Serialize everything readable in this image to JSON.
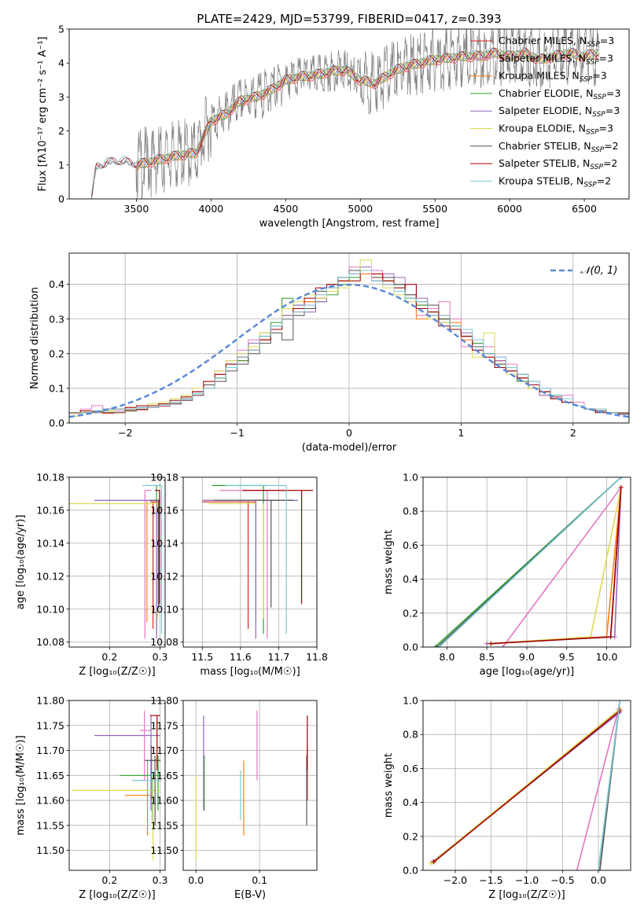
{
  "figure": {
    "title": "PLATE=2429, MJD=53799, FIBERID=0417, z=0.393"
  },
  "models": [
    {
      "name": "Chabrier MILES",
      "nssp": "3",
      "color": "#d62728"
    },
    {
      "name": "Salpeter MILES",
      "nssp": "3",
      "color": "#e377c2"
    },
    {
      "name": "Kroupa MILES",
      "nssp": "3",
      "color": "#ff7f0e"
    },
    {
      "name": "Chabrier ELODIE",
      "nssp": "3",
      "color": "#2ca02c"
    },
    {
      "name": "Salpeter ELODIE",
      "nssp": "3",
      "color": "#9467bd"
    },
    {
      "name": "Kroupa ELODIE",
      "nssp": "3",
      "color": "#dbdb52"
    },
    {
      "name": "Chabrier STELIB",
      "nssp": "2",
      "color": "#555555"
    },
    {
      "name": "Salpeter STELIB",
      "nssp": "2",
      "color": "#a00000"
    },
    {
      "name": "Kroupa STELIB",
      "nssp": "2",
      "color": "#7ec8d8"
    }
  ],
  "chart_data": [
    {
      "id": "spectrum",
      "type": "line",
      "title": "PLATE=2429, MJD=53799, FIBERID=0417, z=0.393",
      "xlabel": "wavelength [Angstrom, rest frame]",
      "ylabel": "Flux [fλ10⁻¹⁷ erg cm⁻² s⁻¹ A⁻¹]",
      "xlim": [
        3050,
        6800
      ],
      "ylim": [
        0,
        5
      ],
      "xticks": [
        3500,
        4000,
        4500,
        5000,
        5500,
        6000,
        6500
      ],
      "yticks": [
        0,
        1,
        2,
        3,
        4,
        5
      ],
      "data_color": "#808080",
      "data_approx": {
        "x": [
          3200,
          3230,
          3300,
          3400,
          3500,
          3600,
          3700,
          3800,
          3900,
          4000,
          4100,
          4200,
          4300,
          4400,
          4500,
          4600,
          4700,
          4800,
          4900,
          5000,
          5100,
          5200,
          5300,
          5400,
          5500,
          5600,
          5700,
          5800,
          5900,
          6000,
          6100,
          6200,
          6300,
          6400,
          6500,
          6600
        ],
        "y": [
          0.0,
          0.9,
          1.05,
          1.1,
          1.0,
          1.1,
          1.2,
          1.3,
          1.35,
          2.3,
          2.5,
          2.9,
          3.0,
          3.2,
          3.5,
          3.6,
          3.65,
          3.75,
          3.8,
          3.5,
          3.4,
          3.7,
          3.9,
          4.0,
          4.1,
          4.15,
          4.2,
          4.2,
          4.3,
          4.2,
          4.3,
          4.1,
          4.2,
          4.3,
          4.2,
          4.3
        ]
      },
      "legend": "top-right",
      "grid": false
    },
    {
      "id": "residuals",
      "type": "histogram",
      "xlabel": "(data-model)/error",
      "ylabel": "Normed distribution",
      "xlim": [
        -2.5,
        2.5
      ],
      "ylim": [
        0,
        0.49
      ],
      "xticks": [
        -2,
        -1,
        0,
        1,
        2
      ],
      "yticks": [
        0.0,
        0.1,
        0.2,
        0.3,
        0.4
      ],
      "bin_width": 0.1,
      "reference_label": "𝒩(0, 1)",
      "reference_color": "#5b8bd9",
      "grid": true,
      "legend": "top-right"
    },
    {
      "id": "age_vs_Z",
      "type": "errorbar",
      "xlabel": "Z [log₁₀(Z/Z☉)]",
      "ylabel": "age  [log₁₀(age/yr)]",
      "xlim": [
        0.12,
        0.31
      ],
      "ylim": [
        10.077,
        10.18
      ],
      "xticks": [
        0.2,
        0.3
      ],
      "yticks": [
        10.08,
        10.1,
        10.12,
        10.14,
        10.16,
        10.18
      ],
      "grid": true
    },
    {
      "id": "age_vs_mass",
      "type": "errorbar",
      "xlabel": "mass [log₁₀(M/M☉)]",
      "xlim": [
        11.45,
        11.8
      ],
      "ylim": [
        10.077,
        10.18
      ],
      "xticks": [
        11.5,
        11.6,
        11.7,
        11.8
      ],
      "yticks": [
        10.08,
        10.1,
        10.12,
        10.14,
        10.16,
        10.18
      ],
      "grid": true
    },
    {
      "id": "massweight_vs_age",
      "type": "line",
      "xlabel": "age  [log₁₀(age/yr)]",
      "ylabel": "mass weight",
      "xlim": [
        7.7,
        10.3
      ],
      "ylim": [
        0,
        1
      ],
      "xticks": [
        8.0,
        8.5,
        9.0,
        9.5,
        10.0
      ],
      "yticks": [
        0.0,
        0.2,
        0.4,
        0.6,
        0.8,
        1.0
      ],
      "grid": true
    },
    {
      "id": "mass_vs_Z",
      "type": "errorbar",
      "xlabel": "Z [log₁₀(Z/Z☉)]",
      "ylabel": "mass [log₁₀(M/M☉)]",
      "xlim": [
        0.12,
        0.31
      ],
      "ylim": [
        11.46,
        11.8
      ],
      "xticks": [
        0.2,
        0.3
      ],
      "yticks": [
        11.5,
        11.55,
        11.6,
        11.65,
        11.7,
        11.75,
        11.8
      ],
      "grid": true
    },
    {
      "id": "mass_vs_ebv",
      "type": "errorbar",
      "xlabel": "E(B-V)",
      "xlim": [
        -0.02,
        0.19
      ],
      "ylim": [
        11.46,
        11.8
      ],
      "xticks": [
        0.0,
        0.1
      ],
      "yticks": [
        11.5,
        11.55,
        11.6,
        11.65,
        11.7,
        11.75,
        11.8
      ],
      "grid": true
    },
    {
      "id": "massweight_vs_Z",
      "type": "line",
      "xlabel": "Z [log₁₀(Z/Z☉)]",
      "ylabel": "mass weight",
      "xlim": [
        -2.45,
        0.45
      ],
      "ylim": [
        0,
        1
      ],
      "xticks": [
        -2.0,
        -1.5,
        -1.0,
        -0.5,
        0.0
      ],
      "yticks": [
        0.0,
        0.2,
        0.4,
        0.6,
        0.8,
        1.0
      ],
      "grid": true
    }
  ],
  "fits": {
    "residual_hist": [
      [
        0.03,
        0.03,
        0.03,
        0.028,
        0.03,
        0.035,
        0.038,
        0.045,
        0.048,
        0.055,
        0.065,
        0.08,
        0.1,
        0.13,
        0.16,
        0.18,
        0.21,
        0.24,
        0.27,
        0.3,
        0.33,
        0.35,
        0.36,
        0.38,
        0.41,
        0.43,
        0.44,
        0.43,
        0.41,
        0.4,
        0.37,
        0.34,
        0.32,
        0.3,
        0.28,
        0.25,
        0.22,
        0.2,
        0.18,
        0.15,
        0.13,
        0.11,
        0.09,
        0.075,
        0.06,
        0.05,
        0.04,
        0.035,
        0.03,
        0.028
      ],
      [
        0.03,
        0.04,
        0.05,
        0.04,
        0.035,
        0.04,
        0.045,
        0.05,
        0.05,
        0.06,
        0.07,
        0.09,
        0.12,
        0.15,
        0.18,
        0.21,
        0.24,
        0.25,
        0.27,
        0.3,
        0.32,
        0.34,
        0.36,
        0.38,
        0.42,
        0.45,
        0.43,
        0.44,
        0.4,
        0.39,
        0.4,
        0.31,
        0.33,
        0.35,
        0.3,
        0.22,
        0.23,
        0.22,
        0.19,
        0.17,
        0.12,
        0.1,
        0.1,
        0.07,
        0.08,
        0.06,
        0.04,
        0.04,
        0.03,
        0.03
      ],
      [
        0.028,
        0.035,
        0.03,
        0.03,
        0.03,
        0.038,
        0.04,
        0.045,
        0.05,
        0.06,
        0.075,
        0.085,
        0.11,
        0.14,
        0.17,
        0.19,
        0.22,
        0.24,
        0.28,
        0.31,
        0.32,
        0.35,
        0.37,
        0.39,
        0.41,
        0.44,
        0.43,
        0.42,
        0.4,
        0.38,
        0.36,
        0.3,
        0.31,
        0.31,
        0.29,
        0.24,
        0.22,
        0.19,
        0.18,
        0.15,
        0.13,
        0.1,
        0.08,
        0.07,
        0.06,
        0.05,
        0.04,
        0.035,
        0.03,
        0.03
      ],
      [
        0.03,
        0.03,
        0.035,
        0.035,
        0.04,
        0.035,
        0.045,
        0.05,
        0.055,
        0.06,
        0.07,
        0.085,
        0.11,
        0.13,
        0.16,
        0.18,
        0.22,
        0.25,
        0.29,
        0.36,
        0.34,
        0.33,
        0.35,
        0.37,
        0.4,
        0.42,
        0.44,
        0.41,
        0.41,
        0.4,
        0.36,
        0.34,
        0.32,
        0.3,
        0.27,
        0.25,
        0.23,
        0.2,
        0.17,
        0.15,
        0.12,
        0.1,
        0.09,
        0.07,
        0.06,
        0.05,
        0.04,
        0.035,
        0.03,
        0.03
      ],
      [
        0.03,
        0.03,
        0.035,
        0.04,
        0.04,
        0.04,
        0.045,
        0.05,
        0.055,
        0.06,
        0.07,
        0.09,
        0.11,
        0.14,
        0.17,
        0.2,
        0.23,
        0.26,
        0.28,
        0.31,
        0.34,
        0.32,
        0.35,
        0.38,
        0.42,
        0.44,
        0.45,
        0.41,
        0.43,
        0.42,
        0.37,
        0.36,
        0.31,
        0.29,
        0.27,
        0.26,
        0.21,
        0.2,
        0.18,
        0.16,
        0.13,
        0.12,
        0.08,
        0.07,
        0.06,
        0.05,
        0.04,
        0.03,
        0.03,
        0.03
      ],
      [
        0.02,
        0.03,
        0.035,
        0.035,
        0.04,
        0.045,
        0.05,
        0.055,
        0.06,
        0.07,
        0.08,
        0.1,
        0.12,
        0.15,
        0.18,
        0.2,
        0.22,
        0.26,
        0.27,
        0.33,
        0.35,
        0.37,
        0.36,
        0.38,
        0.39,
        0.41,
        0.47,
        0.42,
        0.39,
        0.37,
        0.35,
        0.33,
        0.3,
        0.29,
        0.28,
        0.27,
        0.19,
        0.26,
        0.17,
        0.14,
        0.14,
        0.1,
        0.09,
        0.08,
        0.06,
        0.05,
        0.04,
        0.04,
        0.03,
        0.03
      ],
      [
        0.03,
        0.03,
        0.032,
        0.03,
        0.03,
        0.035,
        0.04,
        0.045,
        0.05,
        0.055,
        0.065,
        0.08,
        0.11,
        0.12,
        0.15,
        0.17,
        0.2,
        0.23,
        0.26,
        0.24,
        0.31,
        0.33,
        0.38,
        0.4,
        0.42,
        0.44,
        0.44,
        0.42,
        0.42,
        0.4,
        0.37,
        0.35,
        0.34,
        0.3,
        0.28,
        0.25,
        0.22,
        0.2,
        0.17,
        0.16,
        0.14,
        0.11,
        0.09,
        0.08,
        0.06,
        0.05,
        0.04,
        0.035,
        0.03,
        0.025
      ],
      [
        0.03,
        0.035,
        0.035,
        0.04,
        0.04,
        0.045,
        0.05,
        0.05,
        0.055,
        0.065,
        0.075,
        0.09,
        0.12,
        0.14,
        0.17,
        0.19,
        0.21,
        0.24,
        0.27,
        0.3,
        0.33,
        0.36,
        0.39,
        0.4,
        0.41,
        0.41,
        0.44,
        0.43,
        0.41,
        0.39,
        0.4,
        0.33,
        0.32,
        0.28,
        0.27,
        0.25,
        0.21,
        0.19,
        0.16,
        0.15,
        0.13,
        0.11,
        0.09,
        0.07,
        0.06,
        0.05,
        0.04,
        0.03,
        0.03,
        0.03
      ],
      [
        0.03,
        0.03,
        0.035,
        0.04,
        0.04,
        0.04,
        0.045,
        0.045,
        0.05,
        0.06,
        0.07,
        0.085,
        0.1,
        0.13,
        0.16,
        0.19,
        0.21,
        0.25,
        0.28,
        0.3,
        0.32,
        0.34,
        0.37,
        0.39,
        0.42,
        0.43,
        0.44,
        0.41,
        0.4,
        0.38,
        0.36,
        0.35,
        0.31,
        0.31,
        0.28,
        0.27,
        0.24,
        0.2,
        0.19,
        0.16,
        0.14,
        0.12,
        0.1,
        0.08,
        0.07,
        0.05,
        0.04,
        0.04,
        0.03,
        0.03
      ]
    ],
    "age": [
      10.165,
      10.172,
      10.166,
      10.175,
      10.166,
      10.164,
      10.166,
      10.172,
      10.175
    ],
    "age_lo": [
      10.088,
      10.082,
      10.092,
      10.085,
      10.082,
      10.094,
      10.101,
      10.103,
      10.085
    ],
    "Z": [
      0.301,
      0.283,
      0.285,
      0.302,
      0.3,
      0.3,
      0.3,
      0.3,
      0.302
    ],
    "Z_lo": [
      0.28,
      0.27,
      0.278,
      0.285,
      0.17,
      0.11,
      0.28,
      0.29,
      0.265
    ],
    "mass": [
      11.68,
      11.74,
      11.61,
      11.65,
      11.73,
      11.62,
      11.68,
      11.77,
      11.64
    ],
    "mass_lo": [
      11.6,
      11.64,
      11.53,
      11.58,
      11.58,
      11.48,
      11.55,
      11.66,
      11.56
    ],
    "mass_hi": [
      11.71,
      11.78,
      11.68,
      11.69,
      11.77,
      11.65,
      11.69,
      11.77,
      11.66
    ],
    "Z_m_lo": [
      0.285,
      0.26,
      0.23,
      0.22,
      0.17,
      0.125,
      0.27,
      0.28,
      0.245
    ],
    "mass_age_lo": [
      11.62,
      11.66,
      11.62,
      11.63,
      11.6,
      11.61,
      11.62,
      11.69,
      11.64
    ],
    "mass_age_hi": [
      11.62,
      11.7,
      11.64,
      11.65,
      11.73,
      11.62,
      11.72,
      11.77,
      11.7
    ],
    "ebv": [
      0.175,
      0.096,
      0.075,
      0.013,
      0.012,
      0.0,
      0.174,
      0.175,
      0.07
    ],
    "mw_age": [
      [
        [
          10.05,
          0.06
        ],
        [
          10.18,
          0.94
        ]
      ],
      [
        [
          8.7,
          0.0
        ],
        [
          10.18,
          0.94
        ]
      ],
      [
        [
          8.5,
          0.02
        ],
        [
          10.0,
          0.06
        ],
        [
          10.18,
          0.94
        ]
      ],
      [
        [
          7.85,
          0.0
        ],
        [
          10.18,
          1.0
        ]
      ],
      [
        [
          8.5,
          0.02
        ],
        [
          10.1,
          0.06
        ],
        [
          10.18,
          0.94
        ]
      ],
      [
        [
          8.55,
          0.02
        ],
        [
          9.8,
          0.06
        ],
        [
          10.18,
          0.94
        ]
      ],
      [
        [
          7.88,
          0.0
        ],
        [
          10.18,
          1.0
        ]
      ],
      [
        [
          8.55,
          0.02
        ],
        [
          10.05,
          0.06
        ],
        [
          10.18,
          0.94
        ]
      ],
      [
        [
          7.9,
          0.0
        ],
        [
          10.18,
          1.0
        ]
      ]
    ],
    "mw_Z": [
      [
        [
          -2.3,
          0.05
        ],
        [
          0.3,
          0.95
        ]
      ],
      [
        [
          -0.3,
          0.0
        ],
        [
          0.28,
          0.95
        ]
      ],
      [
        [
          -2.3,
          0.05
        ],
        [
          0.3,
          0.94
        ]
      ],
      [
        [
          0.0,
          0.0
        ],
        [
          0.3,
          1.0
        ]
      ],
      [
        [
          -2.32,
          0.05
        ],
        [
          0.3,
          0.93
        ]
      ],
      [
        [
          -2.34,
          0.04
        ],
        [
          0.3,
          0.95
        ]
      ],
      [
        [
          0.02,
          0.0
        ],
        [
          0.3,
          1.0
        ]
      ],
      [
        [
          -2.3,
          0.05
        ],
        [
          0.3,
          0.94
        ]
      ],
      [
        [
          0.0,
          0.0
        ],
        [
          0.3,
          1.0
        ]
      ]
    ]
  }
}
